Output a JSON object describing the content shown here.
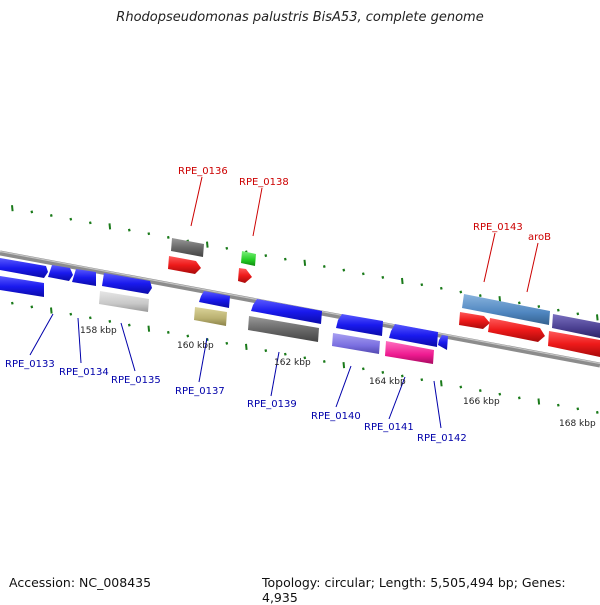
{
  "title": "Rhodopseudomonas palustris BisA53, complete genome",
  "footer": {
    "accession": "Accession: NC_008435",
    "topology": "Topology: circular; Length: 5,505,494 bp; Genes: 4,935"
  },
  "colors": {
    "label_top": "#cc0000",
    "label_bottom": "#0000aa",
    "tick": "#1a7a1a",
    "backbone": "#888888"
  },
  "position_labels": [
    "158 kbp",
    "160 kbp",
    "162 kbp",
    "164 kbp",
    "166 kbp",
    "168 kbp"
  ],
  "gene_labels_top": [
    "RPE_0136",
    "RPE_0138",
    "RPE_0143",
    "aroB"
  ],
  "gene_labels_bottom": [
    "RPE_0133",
    "RPE_0134",
    "RPE_0135",
    "RPE_0137",
    "RPE_0139",
    "RPE_0140",
    "RPE_0141",
    "RPE_0142"
  ]
}
